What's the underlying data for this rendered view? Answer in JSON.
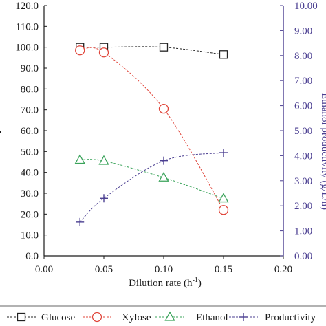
{
  "chart_data": {
    "type": "line",
    "x": [
      0.03,
      0.05,
      0.1,
      0.15
    ],
    "xlabel_prefix": "Dilution rate  (h",
    "xlabel_sup": "-1",
    "xlabel_suffix": ")",
    "xlim": [
      0,
      0.2
    ],
    "xticks": [
      "0.00",
      "0.05",
      "0.10",
      "0.15",
      "0.20"
    ],
    "ylim_left": [
      0,
      120
    ],
    "yticks_left": [
      "0.0",
      "10.0",
      "20.0",
      "30.0",
      "40.0",
      "50.0",
      "60.0",
      "70.0",
      "80.0",
      "90.0",
      "100.0",
      "110.0",
      "120.0"
    ],
    "ylabel_left_partial": "-",
    "ylim_right": [
      0,
      10
    ],
    "yticks_right": [
      "0.00",
      "1.00",
      "2.00",
      "3.00",
      "4.00",
      "5.00",
      "6.00",
      "7.00",
      "8.00",
      "9.00",
      "10.00"
    ],
    "ylabel_right_partial": "Ethanol productivity (g/L/h)",
    "grid": false,
    "legend_position": "bottom",
    "series": [
      {
        "name": "Glucose",
        "axis": "left",
        "marker": "square",
        "color": "#222222",
        "values": [
          100.0,
          100.0,
          100.0,
          96.5
        ]
      },
      {
        "name": "Xylose",
        "axis": "left",
        "marker": "circle",
        "color": "#e0453a",
        "values": [
          98.5,
          97.5,
          70.5,
          22.0
        ]
      },
      {
        "name": "Ethanol",
        "axis": "left",
        "marker": "triangle",
        "color": "#3aa35a",
        "values": [
          46.0,
          45.5,
          37.5,
          27.5
        ]
      },
      {
        "name": "Productivity",
        "axis": "right",
        "marker": "plus",
        "color": "#4b3f91",
        "values": [
          1.35,
          2.3,
          3.8,
          4.12
        ]
      }
    ]
  }
}
